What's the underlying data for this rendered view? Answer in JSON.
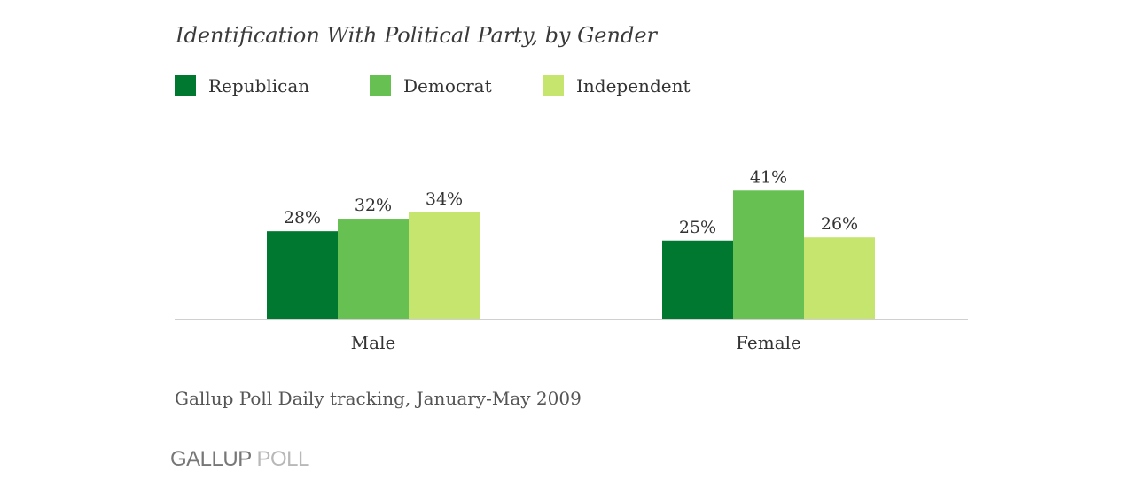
{
  "colors": {
    "republican": "#00782f",
    "democrat": "#66c152",
    "independent": "#c5e56f",
    "axis": "#d0d0d0"
  },
  "chart_data": {
    "type": "bar",
    "title": "Identification With Political Party, by Gender",
    "categories": [
      "Male",
      "Female"
    ],
    "series": [
      {
        "name": "Republican",
        "values": [
          28,
          25
        ],
        "labels": [
          "28%",
          "25%"
        ]
      },
      {
        "name": "Democrat",
        "values": [
          32,
          41
        ],
        "labels": [
          "32%",
          "41%"
        ]
      },
      {
        "name": "Independent",
        "values": [
          34,
          26
        ],
        "labels": [
          "34%",
          "26%"
        ]
      }
    ],
    "unit": "%",
    "ylim": [
      0,
      100
    ],
    "grid": false,
    "legend": "top-left",
    "source": "Gallup Poll Daily tracking, January-May 2009"
  },
  "logo": {
    "brand": "GALLUP",
    "product": "POLL"
  }
}
